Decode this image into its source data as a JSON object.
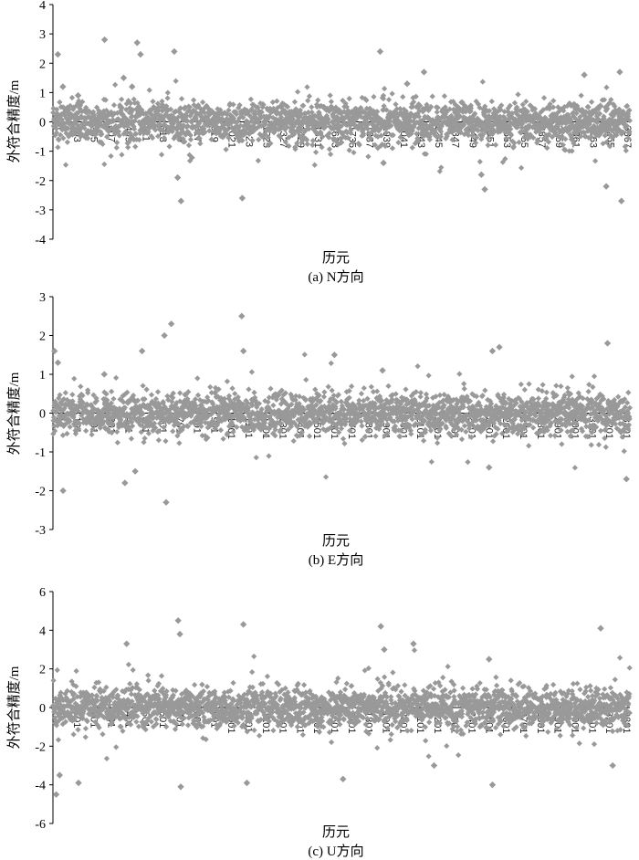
{
  "figure": {
    "marker_color": "#999999",
    "axis_color": "#000000"
  },
  "chart_data": [
    {
      "type": "scatter",
      "panel_id": "N",
      "caption": "(a) N方向",
      "xlabel": "历元",
      "ylabel": "外符合精度/m",
      "ylim": [
        -4,
        4
      ],
      "yticks": [
        -4,
        -3,
        -2,
        -1,
        0,
        1,
        2,
        3,
        4
      ],
      "xlim": [
        1,
        3420
      ],
      "xtick_labels": [
        "1",
        "103",
        "205",
        "307",
        "409",
        "511",
        "613",
        "715",
        "817",
        "919",
        "1021",
        "1123",
        "1225",
        "1327",
        "1429",
        "1531",
        "1633",
        "1735",
        "1837",
        "1939",
        "2041",
        "2143",
        "2245",
        "2347",
        "2449",
        "2551",
        "2653",
        "2755",
        "2857",
        "2959",
        "3061",
        "3163",
        "3265",
        "3367"
      ],
      "series": [
        {
          "values_summary": "dense scatter of per-epoch errors mostly within ±0.7 m",
          "sample_points": [
            [
              30,
              2.3
            ],
            [
              60,
              1.2
            ],
            [
              150,
              0.9
            ],
            [
              307,
              2.8
            ],
            [
              420,
              1.5
            ],
            [
              470,
              1.2
            ],
            [
              500,
              2.7
            ],
            [
              520,
              2.3
            ],
            [
              720,
              2.4
            ],
            [
              740,
              -1.9
            ],
            [
              760,
              -2.7
            ],
            [
              1123,
              -2.6
            ],
            [
              1940,
              2.4
            ],
            [
              1960,
              -1.4
            ],
            [
              2100,
              1.3
            ],
            [
              2200,
              1.7
            ],
            [
              2540,
              -1.8
            ],
            [
              2560,
              -2.3
            ],
            [
              3150,
              1.6
            ],
            [
              3280,
              -2.2
            ],
            [
              3360,
              1.7
            ],
            [
              3370,
              -2.7
            ]
          ]
        }
      ]
    },
    {
      "type": "scatter",
      "panel_id": "E",
      "caption": "(b) E方向",
      "xlabel": "历元",
      "ylabel": "外符合精度/m",
      "ylim": [
        -3,
        3
      ],
      "yticks": [
        -3,
        -2,
        -1,
        0,
        1,
        2,
        3
      ],
      "xlim": [
        1,
        3360
      ],
      "xtick_labels": [
        "1",
        "101",
        "201",
        "301",
        "401",
        "501",
        "601",
        "701",
        "801",
        "901",
        "1001",
        "1101",
        "1201",
        "1301",
        "1401",
        "1501",
        "1601",
        "1701",
        "1801",
        "1901",
        "2001",
        "2101",
        "2201",
        "2301",
        "2401",
        "2501",
        "2601",
        "2701",
        "2801",
        "2901",
        "3001",
        "3101",
        "3201",
        "3301"
      ],
      "series": [
        {
          "values_summary": "dense scatter of per-epoch errors mostly within ±0.5 m",
          "sample_points": [
            [
              10,
              1.6
            ],
            [
              30,
              1.3
            ],
            [
              60,
              -2.0
            ],
            [
              300,
              1.0
            ],
            [
              420,
              -1.8
            ],
            [
              480,
              -1.5
            ],
            [
              520,
              1.6
            ],
            [
              650,
              2.0
            ],
            [
              690,
              2.3
            ],
            [
              660,
              -2.3
            ],
            [
              1100,
              2.5
            ],
            [
              1110,
              1.6
            ],
            [
              1640,
              1.5
            ],
            [
              1920,
              1.1
            ],
            [
              2560,
              1.6
            ],
            [
              2600,
              1.7
            ],
            [
              2540,
              -1.4
            ],
            [
              3230,
              1.8
            ],
            [
              3340,
              -1.7
            ]
          ]
        }
      ]
    },
    {
      "type": "scatter",
      "panel_id": "U",
      "caption": "(c) U方向",
      "xlabel": "历元",
      "ylabel": "外符合精度/m",
      "ylim": [
        -6,
        6
      ],
      "yticks": [
        -6,
        -4,
        -2,
        0,
        2,
        4,
        6
      ],
      "xlim": [
        1,
        3360
      ],
      "xtick_labels": [
        "1",
        "101",
        "201",
        "301",
        "401",
        "501",
        "601",
        "701",
        "801",
        "901",
        "1001",
        "1101",
        "1201",
        "1301",
        "1401",
        "1501",
        "1601",
        "1701",
        "1801",
        "1901",
        "2001",
        "2101",
        "2201",
        "2301",
        "2401",
        "2501",
        "2601",
        "2701",
        "2801",
        "2901",
        "3001",
        "3101",
        "3201",
        "3301"
      ],
      "series": [
        {
          "values_summary": "dense scatter of per-epoch errors mostly within ±1.2 m",
          "sample_points": [
            [
              20,
              -4.5
            ],
            [
              40,
              -3.5
            ],
            [
              150,
              -3.9
            ],
            [
              430,
              3.3
            ],
            [
              730,
              4.5
            ],
            [
              740,
              3.8
            ],
            [
              745,
              -4.1
            ],
            [
              1110,
              4.3
            ],
            [
              1130,
              -3.9
            ],
            [
              1690,
              -3.7
            ],
            [
              1910,
              4.2
            ],
            [
              1930,
              3.0
            ],
            [
              2100,
              3.3
            ],
            [
              2220,
              -3.0
            ],
            [
              2540,
              2.5
            ],
            [
              2560,
              -4.0
            ],
            [
              3190,
              4.1
            ],
            [
              3260,
              -3.0
            ]
          ]
        }
      ]
    }
  ]
}
